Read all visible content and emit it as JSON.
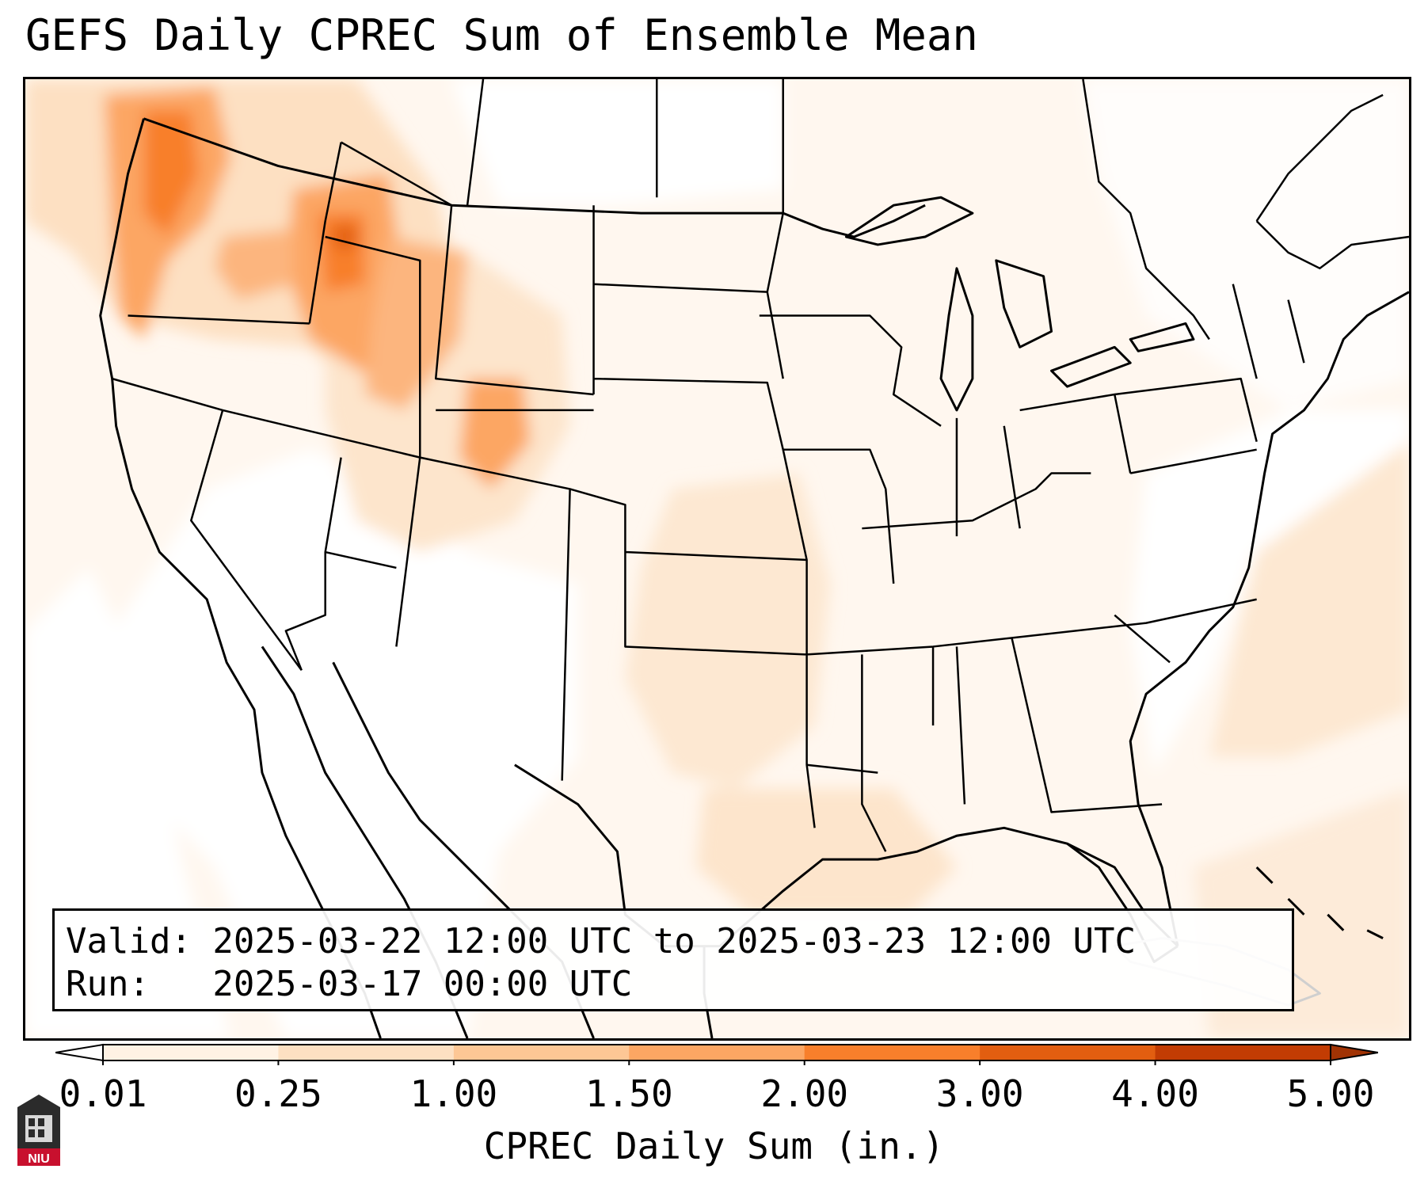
{
  "title": "GEFS Daily CPREC Sum of Ensemble Mean",
  "info": {
    "valid_line": "Valid: 2025-03-22 12:00 UTC to 2025-03-23 12:00 UTC",
    "run_line": "Run:   2025-03-17 00:00 UTC"
  },
  "colorbar": {
    "label": "CPREC Daily Sum (in.)",
    "ticks": [
      "0.01",
      "0.25",
      "1.00",
      "1.50",
      "2.00",
      "3.00",
      "4.00",
      "5.00"
    ],
    "colors": [
      "#fff2e4",
      "#fde0c2",
      "#fdc795",
      "#fca663",
      "#f87f2b",
      "#e25e10",
      "#c23c03"
    ],
    "extend_low_color": "#ffffff",
    "extend_high_color": "#a13304"
  },
  "map": {
    "region": "CONUS",
    "background_color": "#fff7ef",
    "boundary_color": "#000000"
  },
  "logo": {
    "text": "NIU",
    "icon": "niu-logo-icon"
  }
}
